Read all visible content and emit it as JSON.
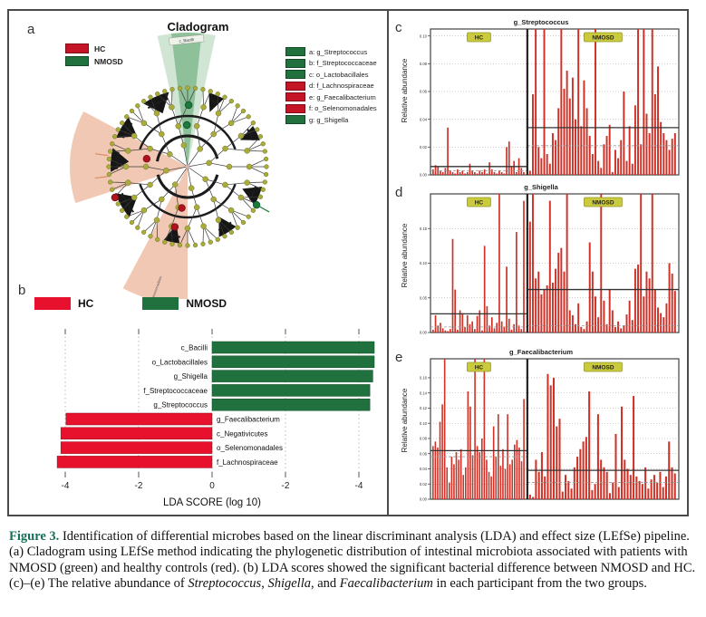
{
  "figure": {
    "panel_letters": {
      "a": "a",
      "b": "b",
      "c": "c",
      "d": "d",
      "e": "e"
    }
  },
  "panel_a": {
    "title": "Cladogram",
    "legend": [
      {
        "label": "HC",
        "color": "#c41425",
        "chip": "chip-red"
      },
      {
        "label": "NMOSD",
        "color": "#20713d",
        "chip": "chip-green"
      }
    ],
    "taxa_legend": [
      {
        "label": "a: g_Streptococcus",
        "color": "#20713d",
        "chip": "chip-green"
      },
      {
        "label": "b: f_Streptococcaceae",
        "color": "#20713d",
        "chip": "chip-green"
      },
      {
        "label": "c: o_Lactobacillales",
        "color": "#20713d",
        "chip": "chip-green"
      },
      {
        "label": "d: f_Lachnospiraceae",
        "color": "#c41425",
        "chip": "chip-red"
      },
      {
        "label": "e: g_Faecalibacterium",
        "color": "#c41425",
        "chip": "chip-red"
      },
      {
        "label": "f: o_Selenomonadales",
        "color": "#c41425",
        "chip": "chip-red"
      },
      {
        "label": "g: g_Shigella",
        "color": "#20713d",
        "chip": "chip-green"
      }
    ],
    "sector_labels": {
      "top": "c_Bacilli",
      "bottom": "o_Selenomonadales"
    }
  },
  "panel_b": {
    "legend": [
      {
        "label": "HC",
        "color": "#e8112d",
        "chip": "chip-red-b"
      },
      {
        "label": "NMOSD",
        "color": "#20713d",
        "chip": "chip-green-b"
      }
    ]
  },
  "chart_data": [
    {
      "id": "lda-scores",
      "type": "bar",
      "orientation": "horizontal-diverging",
      "xlabel": "LDA SCORE (log 10)",
      "x_ticks": {
        "values": [
          -4,
          -2,
          0,
          2,
          4
        ],
        "labels": [
          "-4",
          "-2",
          "0",
          "-2",
          "-4"
        ]
      },
      "series": [
        {
          "name": "NMOSD",
          "color": "#20713d",
          "items": [
            {
              "label": "c_Bacilli",
              "value": 4.42
            },
            {
              "label": "o_Lactobacillales",
              "value": 4.42
            },
            {
              "label": "g_Shigella",
              "value": 4.38
            },
            {
              "label": "f_Streptococcaceae",
              "value": 4.3
            },
            {
              "label": "g_Streptococcus",
              "value": 4.3
            }
          ]
        },
        {
          "name": "HC",
          "color": "#e8112d",
          "items": [
            {
              "label": "g_Faecalibacterium",
              "value": -3.98
            },
            {
              "label": "c_Negativicutes",
              "value": -4.12
            },
            {
              "label": "o_Selenomonadales",
              "value": -4.12
            },
            {
              "label": "f_Lachnospiraceae",
              "value": -4.22
            }
          ]
        }
      ]
    },
    {
      "id": "streptococcus-abundance",
      "type": "bar",
      "title": "g_Streptococcus",
      "ylabel": "Relative abundance",
      "ylim": [
        0,
        0.105
      ],
      "yticks": [
        0,
        0.02,
        0.04,
        0.06,
        0.08,
        0.1
      ],
      "bar_color": "#cf3126",
      "badge_color": "#c9ca3c",
      "groups": [
        {
          "name": "HC",
          "mean": 0.006,
          "median": 0.003,
          "values": [
            0.004,
            0.007,
            0.006,
            0.003,
            0.002,
            0.005,
            0.034,
            0.003,
            0.002,
            0.001,
            0.004,
            0.002,
            0.003,
            0.001,
            0.002,
            0.008,
            0.003,
            0.002,
            0.001,
            0.003,
            0.002,
            0.004,
            0.001,
            0.009,
            0.004,
            0.002,
            0.001,
            0.003,
            0.002,
            0.001,
            0.02,
            0.024,
            0.006,
            0.01,
            0.002,
            0.012,
            0.005,
            0.002
          ]
        },
        {
          "name": "NMOSD",
          "mean": 0.034,
          "median": 0.021,
          "values": [
            0.003,
            0.058,
            0.105,
            0.02,
            0.012,
            0.105,
            0.015,
            0.008,
            0.03,
            0.025,
            0.048,
            0.105,
            0.062,
            0.075,
            0.055,
            0.07,
            0.04,
            0.105,
            0.035,
            0.068,
            0.048,
            0.028,
            0.015,
            0.105,
            0.01,
            0.005,
            0.022,
            0.028,
            0.036,
            0.002,
            0.018,
            0.012,
            0.025,
            0.06,
            0.01,
            0.035,
            0.008,
            0.05,
            0.105,
            0.022,
            0.105,
            0.044,
            0.03,
            0.105,
            0.058,
            0.078,
            0.038,
            0.03,
            0.025,
            0.018,
            0.026,
            0.03
          ]
        }
      ]
    },
    {
      "id": "shigella-abundance",
      "type": "bar",
      "title": "g_Shigella",
      "ylabel": "Relative abundance",
      "ylim": [
        0,
        0.2
      ],
      "yticks": [
        0,
        0.05,
        0.1,
        0.15
      ],
      "bar_color": "#cf3126",
      "badge_color": "#c9ca3c",
      "groups": [
        {
          "name": "HC",
          "mean": 0.027,
          "median": 0.008,
          "values": [
            0.004,
            0.025,
            0.01,
            0.014,
            0.006,
            0.003,
            0.002,
            0.005,
            0.135,
            0.062,
            0.004,
            0.032,
            0.028,
            0.008,
            0.025,
            0.012,
            0.016,
            0.005,
            0.024,
            0.032,
            0.003,
            0.125,
            0.038,
            0.01,
            0.022,
            0.006,
            0.014,
            0.2,
            0.016,
            0.008,
            0.095,
            0.02,
            0.004,
            0.012,
            0.145,
            0.01,
            0.005,
            0.19
          ]
        },
        {
          "name": "NMOSD",
          "mean": 0.062,
          "median": 0.01,
          "values": [
            0.16,
            0.2,
            0.078,
            0.088,
            0.055,
            0.062,
            0.068,
            0.19,
            0.072,
            0.092,
            0.115,
            0.122,
            0.088,
            0.2,
            0.032,
            0.025,
            0.012,
            0.042,
            0.008,
            0.005,
            0.016,
            0.13,
            0.088,
            0.052,
            0.022,
            0.2,
            0.046,
            0.012,
            0.062,
            0.032,
            0.008,
            0.016,
            0.006,
            0.01,
            0.026,
            0.046,
            0.018,
            0.092,
            0.098,
            0.2,
            0.052,
            0.088,
            0.078,
            0.2,
            0.062,
            0.036,
            0.028,
            0.022,
            0.042,
            0.1,
            0.085,
            0.06
          ]
        }
      ]
    },
    {
      "id": "faecalibacterium-abundance",
      "type": "bar",
      "title": "g_Faecalibacterium",
      "ylabel": "Relative abundance",
      "ylim": [
        0,
        0.185
      ],
      "yticks": [
        0,
        0.02,
        0.04,
        0.06,
        0.08,
        0.1,
        0.12,
        0.14,
        0.16
      ],
      "bar_color": "#cf3126",
      "badge_color": "#c9ca3c",
      "groups": [
        {
          "name": "HC",
          "mean": 0.064,
          "median": 0.056,
          "values": [
            0.07,
            0.076,
            0.068,
            0.102,
            0.125,
            0.185,
            0.042,
            0.022,
            0.056,
            0.046,
            0.062,
            0.052,
            0.066,
            0.032,
            0.042,
            0.142,
            0.122,
            0.058,
            0.185,
            0.07,
            0.062,
            0.08,
            0.185,
            0.052,
            0.036,
            0.03,
            0.096,
            0.056,
            0.112,
            0.044,
            0.066,
            0.04,
            0.112,
            0.046,
            0.052,
            0.072,
            0.078,
            0.068,
            0.05,
            0.132
          ]
        },
        {
          "name": "NMOSD",
          "mean": 0.038,
          "median": 0.022,
          "values": [
            0.006,
            0.003,
            0.052,
            0.036,
            0.062,
            0.03,
            0.165,
            0.15,
            0.16,
            0.096,
            0.106,
            0.01,
            0.032,
            0.024,
            0.014,
            0.042,
            0.056,
            0.066,
            0.076,
            0.082,
            0.142,
            0.012,
            0.02,
            0.112,
            0.052,
            0.042,
            0.036,
            0.008,
            0.022,
            0.086,
            0.016,
            0.122,
            0.052,
            0.04,
            0.032,
            0.136,
            0.03,
            0.024,
            0.02,
            0.042,
            0.014,
            0.026,
            0.032,
            0.022,
            0.036,
            0.016,
            0.03,
            0.076,
            0.042,
            0.034
          ]
        }
      ]
    }
  ],
  "colors": {
    "hc_red": "#e8112d",
    "nmosd_green": "#20713d",
    "abundance_bar_red": "#cf3126",
    "badge_olive": "#c9ca3c",
    "node_olive": "#a9ab3b",
    "sector_green": "#57a369",
    "sector_salmon": "#e59a77",
    "caption_label_teal": "#17705a"
  },
  "caption": {
    "segments": [
      {
        "text": "Figure 3.",
        "style": "b-teal"
      },
      {
        "text": "  Identification of differential microbes based on the linear discriminant analysis (LDA) and effect size (LEfSe) pipeline. (a) Cladogram using LEfSe method indicating the phylogenetic distribution of intestinal microbiota associated with patients with NMOSD (green) and healthy controls (red). (b) LDA scores showed the significant bacterial difference between NMOSD and HC. (c)–(e) The relative abundance of ",
        "style": ""
      },
      {
        "text": "Streptococcus",
        "style": "i"
      },
      {
        "text": ", ",
        "style": ""
      },
      {
        "text": "Shigella",
        "style": "i"
      },
      {
        "text": ", and ",
        "style": ""
      },
      {
        "text": "Faecalibacterium",
        "style": "i"
      },
      {
        "text": " in each participant from the two groups.",
        "style": ""
      }
    ]
  }
}
